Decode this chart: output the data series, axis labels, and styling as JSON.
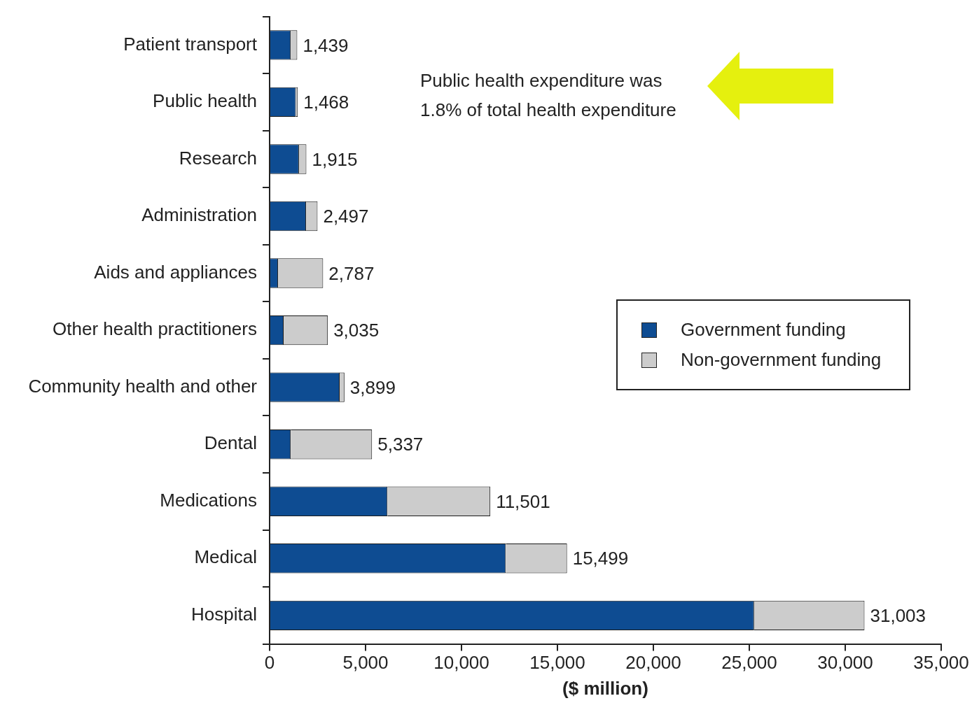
{
  "chart_data": {
    "type": "bar",
    "orientation": "horizontal",
    "stacked": true,
    "categories": [
      "Patient transport",
      "Public health",
      "Research",
      "Administration",
      "Aids and appliances",
      "Other health practitioners",
      "Community health and other",
      "Dental",
      "Medications",
      "Medical",
      "Hospital"
    ],
    "series": [
      {
        "name": "Government funding",
        "color": "#0e4c92",
        "values": [
          1100,
          1370,
          1530,
          1900,
          440,
          730,
          3650,
          1100,
          6140,
          12310,
          25250
        ]
      },
      {
        "name": "Non-government funding",
        "color": "#cccccc",
        "values": [
          339,
          98,
          385,
          597,
          2347,
          2305,
          249,
          4237,
          5361,
          3189,
          5753
        ]
      }
    ],
    "totals": [
      "1,439",
      "1,468",
      "1,915",
      "2,497",
      "2,787",
      "3,035",
      "3,899",
      "5,337",
      "11,501",
      "15,499",
      "31,003"
    ],
    "xlim": [
      0,
      35000
    ],
    "xticks": [
      {
        "value": 0,
        "label": "0"
      },
      {
        "value": 5000,
        "label": "5,000"
      },
      {
        "value": 10000,
        "label": "10,000"
      },
      {
        "value": 15000,
        "label": "15,000"
      },
      {
        "value": 20000,
        "label": "20,000"
      },
      {
        "value": 25000,
        "label": "25,000"
      },
      {
        "value": 30000,
        "label": "30,000"
      },
      {
        "value": 35000,
        "label": "35,000"
      }
    ],
    "xlabel": "($ million)",
    "grid": false,
    "legend": "right",
    "annotations": [
      "Public health expenditure was\n1.8% of total health expenditure"
    ]
  }
}
